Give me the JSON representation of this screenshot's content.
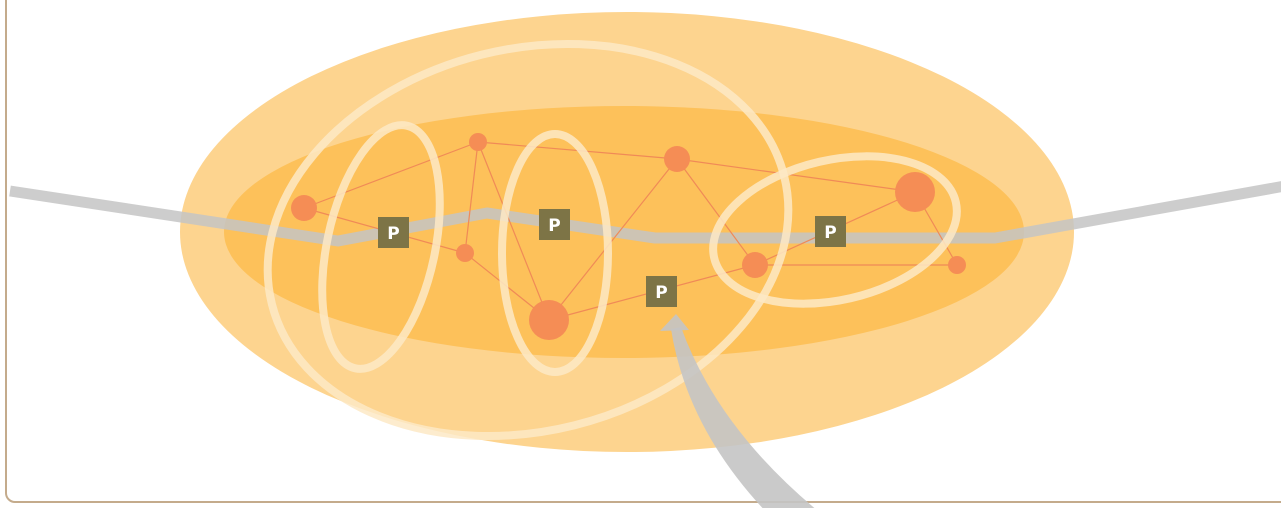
{
  "colors": {
    "outer_region": "#fdd48f",
    "inner_region": "#fdc15a",
    "node": "#f58d55",
    "edge": "#f08a57",
    "path": "#c7c7c7",
    "cluster_outline": "#fde9c6",
    "marker_fill": "#7d7446",
    "frame": "#c4ab8c"
  },
  "markers": [
    {
      "id": "p1",
      "label": "P"
    },
    {
      "id": "p2",
      "label": "P"
    },
    {
      "id": "p3",
      "label": "P"
    },
    {
      "id": "p4",
      "label": "P"
    }
  ]
}
